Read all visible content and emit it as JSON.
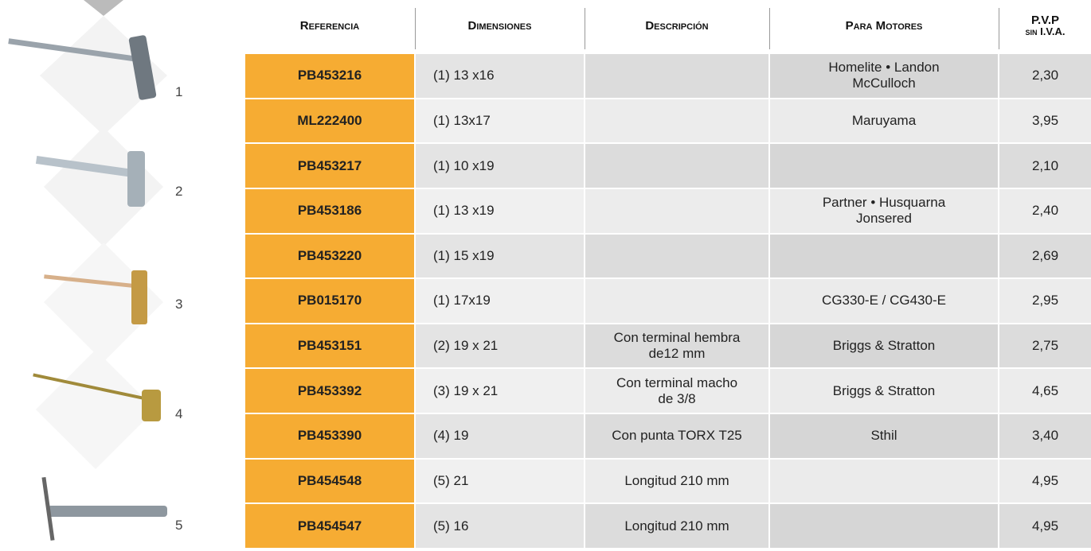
{
  "header": {
    "columns": [
      "Referencia",
      "Dimensiones",
      "Descripción",
      "Para Motores"
    ],
    "price": [
      "P.V.P",
      "sin I.V.A."
    ]
  },
  "rows": [
    {
      "ref": "PB453216",
      "dims": "(1) 13 x16",
      "desc": [],
      "motors": [
        "Homelite • Landon",
        "McCulloch"
      ],
      "price": "2,30"
    },
    {
      "ref": "ML222400",
      "dims": "(1) 13x17",
      "desc": [],
      "motors": [
        "Maruyama"
      ],
      "price": "3,95"
    },
    {
      "ref": "PB453217",
      "dims": "(1) 10 x19",
      "desc": [],
      "motors": [],
      "price": "2,10"
    },
    {
      "ref": "PB453186",
      "dims": "(1) 13 x19",
      "desc": [],
      "motors": [
        "Partner • Husquarna",
        "Jonsered"
      ],
      "price": "2,40"
    },
    {
      "ref": "PB453220",
      "dims": "(1) 15 x19",
      "desc": [],
      "motors": [],
      "price": "2,69"
    },
    {
      "ref": "PB015170",
      "dims": "(1) 17x19",
      "desc": [],
      "motors": [
        "CG330-E / CG430-E"
      ],
      "price": "2,95"
    },
    {
      "ref": "PB453151",
      "dims": "(2) 19 x 21",
      "desc": [
        "Con terminal hembra",
        "de12 mm"
      ],
      "motors": [
        "Briggs & Stratton"
      ],
      "price": "2,75"
    },
    {
      "ref": "PB453392",
      "dims": "(3) 19 x 21",
      "desc": [
        "Con terminal macho",
        "de 3/8"
      ],
      "motors": [
        "Briggs & Stratton"
      ],
      "price": "4,65"
    },
    {
      "ref": "PB453390",
      "dims": "(4) 19",
      "desc": [
        "Con punta TORX T25"
      ],
      "motors": [
        "Sthil"
      ],
      "price": "3,40"
    },
    {
      "ref": "PB454548",
      "dims": "(5) 21",
      "desc": [
        "Longitud 210 mm"
      ],
      "motors": [],
      "price": "4,95"
    },
    {
      "ref": "PB454547",
      "dims": "(5) 16",
      "desc": [
        "Longitud 210 mm"
      ],
      "motors": [],
      "price": "4,95"
    }
  ],
  "tools": [
    "1",
    "2",
    "3",
    "4",
    "5"
  ]
}
